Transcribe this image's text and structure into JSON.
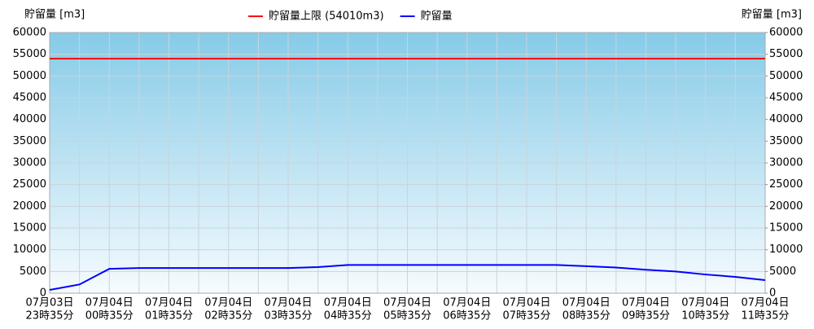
{
  "chart_data": {
    "type": "line",
    "y_label": "貯留量 [m3]",
    "y2_label": "貯留量 [m3]",
    "categories": [
      [
        "07月03日",
        "23時35分"
      ],
      null,
      [
        "07月04日",
        "00時35分"
      ],
      null,
      [
        "07月04日",
        "01時35分"
      ],
      null,
      [
        "07月04日",
        "02時35分"
      ],
      null,
      [
        "07月04日",
        "03時35分"
      ],
      null,
      [
        "07月04日",
        "04時35分"
      ],
      null,
      [
        "07月04日",
        "05時35分"
      ],
      null,
      [
        "07月04日",
        "06時35分"
      ],
      null,
      [
        "07月04日",
        "07時35分"
      ],
      null,
      [
        "07月04日",
        "08時35分"
      ],
      null,
      [
        "07月04日",
        "09時35分"
      ],
      null,
      [
        "07月04日",
        "10時35分"
      ],
      null,
      [
        "07月04日",
        "11時35分"
      ]
    ],
    "series": [
      {
        "name": "貯留量上限 (54010m3)",
        "color": "#ff0000",
        "values": [
          54010,
          54010,
          54010,
          54010,
          54010,
          54010,
          54010,
          54010,
          54010,
          54010,
          54010,
          54010,
          54010,
          54010,
          54010,
          54010,
          54010,
          54010,
          54010,
          54010,
          54010,
          54010,
          54010,
          54010,
          54010
        ]
      },
      {
        "name": "貯留量",
        "color": "#0000ff",
        "values": [
          750,
          2000,
          5600,
          5800,
          5800,
          5800,
          5800,
          5800,
          5800,
          6000,
          6500,
          6500,
          6500,
          6500,
          6500,
          6500,
          6500,
          6500,
          6200,
          5900,
          5400,
          5000,
          4300,
          3750,
          3000
        ]
      }
    ],
    "ylim": [
      0,
      60000
    ],
    "yticks": [
      0,
      5000,
      10000,
      15000,
      20000,
      25000,
      30000,
      35000,
      40000,
      45000,
      50000,
      55000,
      60000
    ],
    "y2lim": [
      0,
      60000
    ],
    "y2ticks": [
      0,
      5000,
      10000,
      15000,
      20000,
      25000,
      30000,
      35000,
      40000,
      45000,
      50000,
      55000,
      60000
    ],
    "grid": true
  }
}
